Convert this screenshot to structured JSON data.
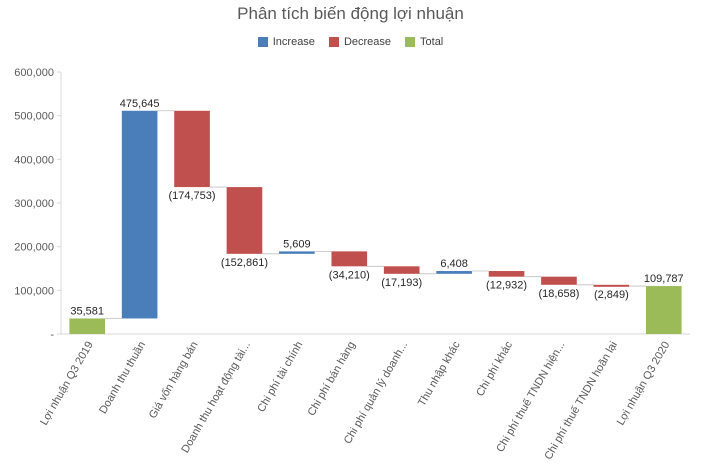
{
  "chart_data": {
    "type": "waterfall",
    "title": "Phân tích biến động lợi nhuận",
    "legend": {
      "placement": "top-center",
      "items": [
        {
          "key": "increase",
          "label": "Increase",
          "color": "#4a7ebb"
        },
        {
          "key": "decrease",
          "label": "Decrease",
          "color": "#c0504d"
        },
        {
          "key": "total",
          "label": "Total",
          "color": "#9bbb59"
        }
      ]
    },
    "ylim": [
      0,
      600000
    ],
    "yticks": [
      0,
      100000,
      200000,
      300000,
      400000,
      500000,
      600000
    ],
    "ytick_labels": [
      "-",
      "100,000",
      "200,000",
      "300,000",
      "400,000",
      "500,000",
      "600,000"
    ],
    "grid": false,
    "categories": [
      "Lợi nhuận Q3 2019",
      "Doanh thu thuần",
      "Giá vốn hàng bán",
      "Doanh thu hoạt động tài...",
      "Chi phí tài chính",
      "Chi phí bán hàng",
      "Chi phí quản lý doanh...",
      "Thu nhập khác",
      "Chi phí khác",
      "Chi phí thuế TNDN hiện...",
      "Chi phí thuế TNDN hoãn lại",
      "Lợi nhuận Q3 2020"
    ],
    "bars": [
      {
        "kind": "total",
        "start": 0,
        "end": 35581,
        "label": "35,581"
      },
      {
        "kind": "increase",
        "start": 35581,
        "end": 511226,
        "label": "475,645"
      },
      {
        "kind": "decrease",
        "start": 511226,
        "end": 336473,
        "label": "(174,753)"
      },
      {
        "kind": "decrease",
        "start": 336473,
        "end": 183612,
        "label": "(152,861)"
      },
      {
        "kind": "increase",
        "start": 183612,
        "end": 189221,
        "label": "5,609"
      },
      {
        "kind": "decrease",
        "start": 189221,
        "end": 155011,
        "label": "(34,210)"
      },
      {
        "kind": "decrease",
        "start": 155011,
        "end": 137818,
        "label": "(17,193)"
      },
      {
        "kind": "increase",
        "start": 137818,
        "end": 144226,
        "label": "6,408"
      },
      {
        "kind": "decrease",
        "start": 144226,
        "end": 131294,
        "label": "(12,932)"
      },
      {
        "kind": "decrease",
        "start": 131294,
        "end": 112636,
        "label": "(18,658)"
      },
      {
        "kind": "decrease",
        "start": 112636,
        "end": 109787,
        "label": "(2,849)"
      },
      {
        "kind": "total",
        "start": 0,
        "end": 109787,
        "label": "109,787"
      }
    ]
  }
}
